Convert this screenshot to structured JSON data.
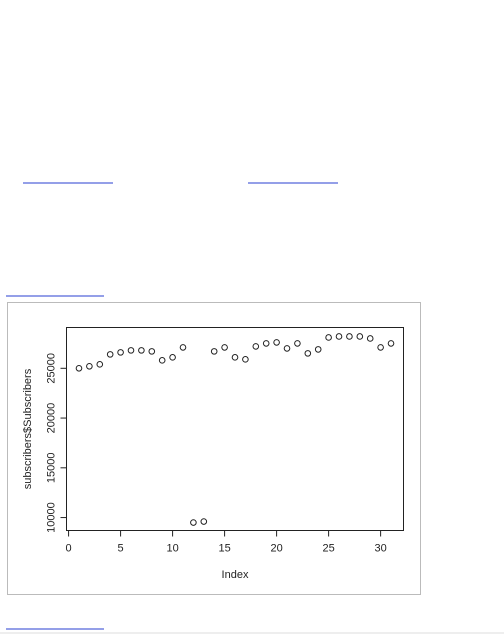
{
  "chart_data": {
    "type": "scatter",
    "xlabel": "Index",
    "ylabel": "subscribers$Subscribers",
    "x": [
      1,
      2,
      3,
      4,
      5,
      6,
      7,
      8,
      9,
      10,
      11,
      12,
      13,
      14,
      15,
      16,
      17,
      18,
      19,
      20,
      21,
      22,
      23,
      24,
      25,
      26,
      27,
      28,
      29,
      30,
      31
    ],
    "values": [
      25000,
      25200,
      25400,
      26400,
      26600,
      26800,
      26800,
      26700,
      25800,
      26100,
      27100,
      9500,
      9600,
      26700,
      27100,
      26100,
      25900,
      27200,
      27500,
      27600,
      27000,
      27500,
      26500,
      26900,
      28100,
      28200,
      28200,
      28200,
      28000,
      27100,
      27500
    ],
    "color": "#222222",
    "xlim": [
      -0.2,
      32.2
    ],
    "xticks": [
      0,
      5,
      10,
      15,
      20,
      25,
      30
    ],
    "ylim": [
      8700,
      29100
    ],
    "yticks": [
      10000,
      15000,
      20000,
      25000
    ]
  }
}
